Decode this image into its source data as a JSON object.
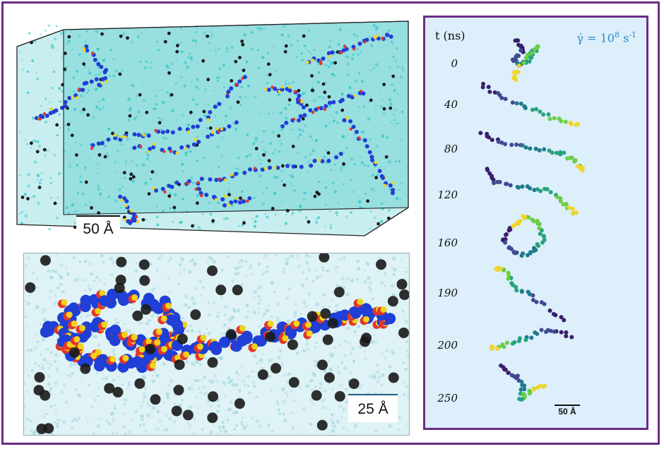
{
  "top_panel": {
    "scale_label": "50 Å"
  },
  "bottom_panel": {
    "scale_label": "25 Å"
  },
  "right_panel": {
    "time_header": "t (ns)",
    "shear_label": {
      "gamma": "γ̇ = 10",
      "exponent": "8",
      "unit": " s",
      "unit_exp": "-1"
    },
    "scale_label": "50 Å",
    "times": [
      "0",
      "40",
      "80",
      "120",
      "160",
      "190",
      "200",
      "250"
    ]
  },
  "colors": {
    "frame": "#6b2d86",
    "water": "#27c4c4",
    "polymer": "#1f3fd6",
    "sulfur": "#f2d21b",
    "oxygen": "#e3362a",
    "counterion": "#1a1a1a",
    "shear_text": "#2f8bc7"
  }
}
